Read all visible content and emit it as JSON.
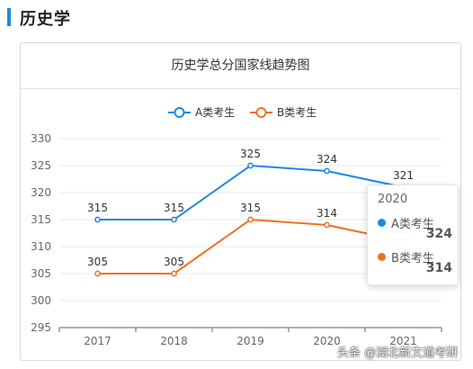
{
  "section": {
    "title": "历史学",
    "accent": "#1e88e5"
  },
  "chart_data": {
    "type": "line",
    "title": "历史学总分国家线趋势图",
    "categories": [
      "2017",
      "2018",
      "2019",
      "2020",
      "2021"
    ],
    "ylim": [
      295,
      330
    ],
    "yticks": [
      295,
      300,
      305,
      310,
      315,
      320,
      325,
      330
    ],
    "grid": true,
    "legend_position": "top",
    "series": [
      {
        "name": "A类考生",
        "color": "#1e88e5",
        "values": [
          315,
          315,
          325,
          324,
          321
        ]
      },
      {
        "name": "B类考生",
        "color": "#f07020",
        "values": [
          305,
          305,
          315,
          314,
          311
        ]
      }
    ]
  },
  "tooltip": {
    "year": "2020",
    "rows": [
      {
        "name": "A类考生",
        "value": "324",
        "color": "#1e88e5"
      },
      {
        "name": "B类考生",
        "value": "314",
        "color": "#f07020"
      }
    ]
  },
  "watermark": "头条 @湖北新文道考研"
}
